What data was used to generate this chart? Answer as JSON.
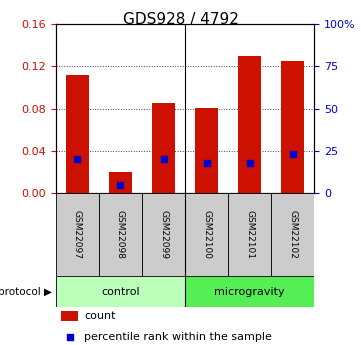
{
  "title": "GDS928 / 4792",
  "samples": [
    "GSM22097",
    "GSM22098",
    "GSM22099",
    "GSM22100",
    "GSM22101",
    "GSM22102"
  ],
  "count_values": [
    0.112,
    0.02,
    0.085,
    0.081,
    0.13,
    0.125
  ],
  "percentile_values": [
    20.5,
    5.0,
    20.0,
    18.0,
    18.0,
    23.0
  ],
  "bar_color": "#cc1100",
  "marker_color": "#0000cc",
  "ylim_left": [
    0,
    0.16
  ],
  "ylim_right": [
    0,
    100
  ],
  "yticks_left": [
    0,
    0.04,
    0.08,
    0.12,
    0.16
  ],
  "yticks_right": [
    0,
    25,
    50,
    75,
    100
  ],
  "ytick_labels_right": [
    "0",
    "25",
    "50",
    "75",
    "100%"
  ],
  "groups": [
    {
      "label": "control",
      "start": 0,
      "end": 3,
      "color": "#bbffbb"
    },
    {
      "label": "microgravity",
      "start": 3,
      "end": 6,
      "color": "#55ee55"
    }
  ],
  "legend_count": "count",
  "legend_pct": "percentile rank within the sample",
  "bar_width": 0.55,
  "sample_bg_color": "#cccccc",
  "left_axis_color": "#cc1100",
  "right_axis_color": "#0000cc",
  "fig_bg": "#ffffff"
}
